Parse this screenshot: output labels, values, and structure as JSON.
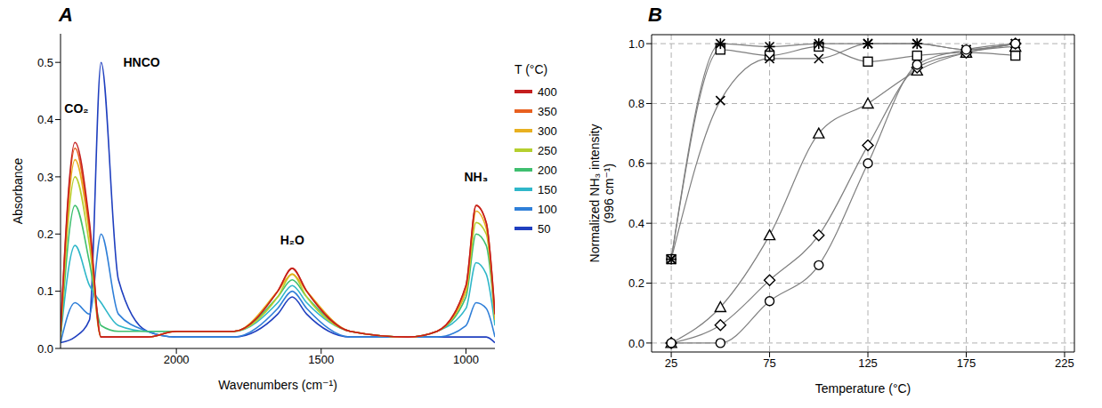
{
  "chart_data": [
    {
      "panel_label": "A",
      "type": "line",
      "x_label": "Wavenumbers (cm⁻¹)",
      "y_label": "Absorbance",
      "legend_title": "T (°C)",
      "legend": "right",
      "grid": false,
      "x": [
        2400,
        2350,
        2300,
        2260,
        2200,
        2100,
        2000,
        1800,
        1650,
        1600,
        1550,
        1400,
        1200,
        1100,
        1000,
        965,
        930,
        900
      ],
      "xlim": [
        2400,
        900
      ],
      "xticks": [
        2000,
        1500,
        1000
      ],
      "ylim": [
        0,
        0.55
      ],
      "yticks": [
        {
          "value": 0,
          "label": "0.0"
        },
        0.1,
        0.2,
        0.3,
        0.4,
        0.5
      ],
      "series": [
        {
          "name": "50",
          "color": "#1f3fbf",
          "values": [
            0.01,
            0.02,
            0.05,
            0.5,
            0.12,
            0.03,
            0.02,
            0.02,
            0.06,
            0.09,
            0.06,
            0.02,
            0.02,
            0.02,
            0.02,
            0.02,
            0.02,
            0.01
          ]
        },
        {
          "name": "100",
          "color": "#2f7fd8",
          "values": [
            0.01,
            0.08,
            0.06,
            0.2,
            0.06,
            0.03,
            0.02,
            0.02,
            0.07,
            0.1,
            0.07,
            0.02,
            0.02,
            0.02,
            0.04,
            0.08,
            0.07,
            0.02
          ]
        },
        {
          "name": "150",
          "color": "#2fb7c9",
          "values": [
            0.02,
            0.18,
            0.11,
            0.08,
            0.04,
            0.03,
            0.03,
            0.03,
            0.08,
            0.11,
            0.08,
            0.03,
            0.02,
            0.03,
            0.07,
            0.15,
            0.13,
            0.04
          ]
        },
        {
          "name": "200",
          "color": "#3fbf6f",
          "values": [
            0.02,
            0.25,
            0.15,
            0.04,
            0.03,
            0.03,
            0.03,
            0.03,
            0.09,
            0.12,
            0.09,
            0.03,
            0.02,
            0.03,
            0.09,
            0.2,
            0.18,
            0.05
          ]
        },
        {
          "name": "250",
          "color": "#b5cf2f",
          "values": [
            0.02,
            0.3,
            0.18,
            0.02,
            0.02,
            0.02,
            0.03,
            0.03,
            0.09,
            0.13,
            0.09,
            0.03,
            0.02,
            0.03,
            0.1,
            0.22,
            0.2,
            0.05
          ]
        },
        {
          "name": "300",
          "color": "#e8b020",
          "values": [
            0.02,
            0.33,
            0.2,
            0.02,
            0.02,
            0.02,
            0.03,
            0.03,
            0.1,
            0.13,
            0.1,
            0.03,
            0.02,
            0.03,
            0.1,
            0.24,
            0.21,
            0.05
          ]
        },
        {
          "name": "350",
          "color": "#e8601f",
          "values": [
            0.03,
            0.35,
            0.21,
            0.02,
            0.02,
            0.02,
            0.03,
            0.03,
            0.1,
            0.14,
            0.1,
            0.03,
            0.02,
            0.03,
            0.11,
            0.25,
            0.22,
            0.06
          ]
        },
        {
          "name": "400",
          "color": "#c41e1e",
          "values": [
            0.03,
            0.36,
            0.22,
            0.02,
            0.02,
            0.02,
            0.03,
            0.03,
            0.1,
            0.14,
            0.1,
            0.03,
            0.02,
            0.03,
            0.11,
            0.25,
            0.22,
            0.06
          ]
        }
      ],
      "annotations": [
        {
          "text": "HNCO",
          "x": 2120,
          "y": 0.5
        },
        {
          "text": "CO₂",
          "x": 2345,
          "y": 0.42
        },
        {
          "text": "H₂O",
          "x": 1600,
          "y": 0.19
        },
        {
          "text": "NH₃",
          "x": 965,
          "y": 0.3
        }
      ]
    },
    {
      "panel_label": "B",
      "type": "line",
      "x_label": "Temperature (°C)",
      "y_label": "Normalized NH₃ intensity (996 cm⁻¹)",
      "grid": true,
      "x": [
        25,
        50,
        75,
        100,
        125,
        150,
        175,
        200
      ],
      "xlim": [
        15,
        230
      ],
      "xticks": [
        25,
        75,
        125,
        175,
        225
      ],
      "ylim": [
        -0.03,
        1.03
      ],
      "yticks": [
        {
          "value": 0,
          "label": "0.0"
        },
        0.2,
        0.4,
        0.6,
        0.8,
        {
          "value": 1,
          "label": "1.0"
        }
      ],
      "series": [
        {
          "color": "#000000",
          "marker": "square",
          "values": [
            0.28,
            0.98,
            0.96,
            0.99,
            0.94,
            0.96,
            0.97,
            0.96
          ]
        },
        {
          "color": "#000000",
          "marker": "x",
          "values": [
            0.28,
            0.81,
            0.95,
            0.95,
            1.0,
            1.0,
            0.98,
            1.0
          ]
        },
        {
          "color": "#000000",
          "marker": "star",
          "values": [
            0.28,
            1.0,
            0.99,
            1.0,
            1.0,
            1.0,
            0.98,
            1.0
          ]
        },
        {
          "color": "#000000",
          "marker": "triangle",
          "values": [
            0.0,
            0.12,
            0.36,
            0.7,
            0.8,
            0.91,
            0.97,
            0.99
          ]
        },
        {
          "color": "#000000",
          "marker": "diamond",
          "values": [
            0.0,
            0.06,
            0.21,
            0.36,
            0.66,
            0.92,
            0.97,
            1.0
          ]
        },
        {
          "color": "#000000",
          "marker": "circle",
          "values": [
            0.0,
            0.0,
            0.14,
            0.26,
            0.6,
            0.93,
            0.98,
            1.0
          ]
        }
      ]
    }
  ]
}
